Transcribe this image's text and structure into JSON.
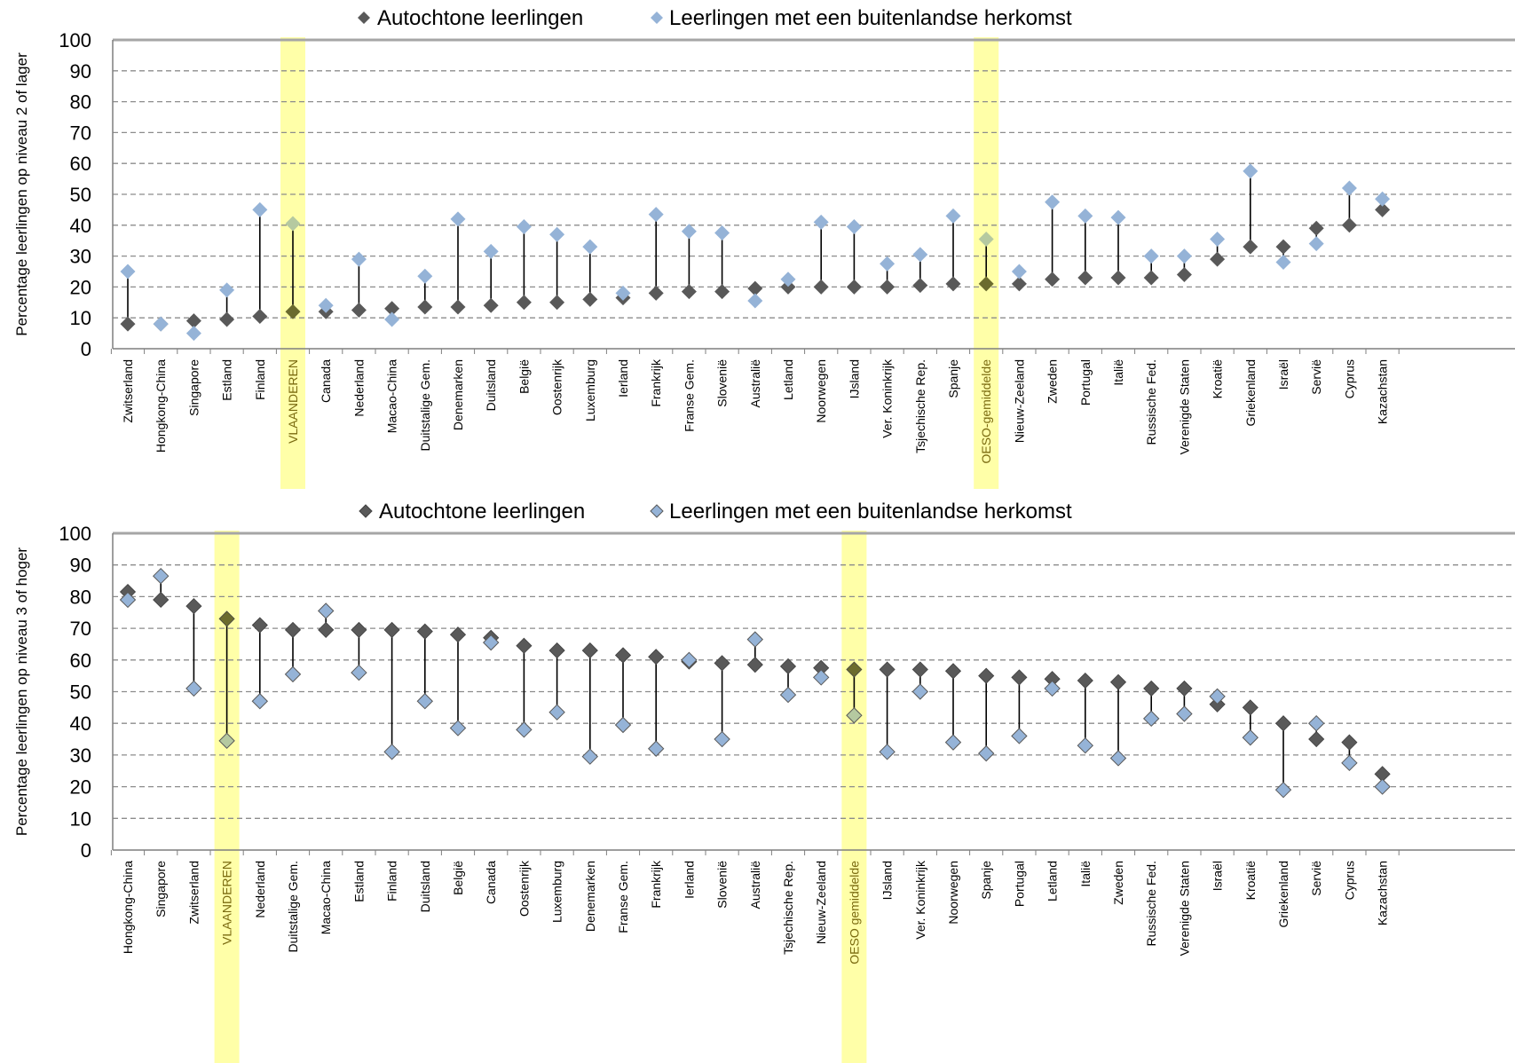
{
  "colors": {
    "autochtoon": "#595959",
    "buitenlands": "#95b3d7",
    "highlight": "#ffff99",
    "gridline": "#8c8c8c"
  },
  "chart_data": [
    {
      "type": "scatter",
      "ylabel": "Percentage leerlingen op niveau 2 of lager",
      "ylim": [
        0,
        100
      ],
      "yticks": [
        0,
        10,
        20,
        30,
        40,
        50,
        60,
        70,
        80,
        90,
        100
      ],
      "grid": true,
      "legend_position": "top",
      "highlight_categories": [
        "VLAANDEREN",
        "OESO-gemiddelde"
      ],
      "categories": [
        "Zwitserland",
        "Hongkong-China",
        "Singapore",
        "Estland",
        "Finland",
        "VLAANDEREN",
        "Canada",
        "Nederland",
        "Macao-China",
        "Duitstalige Gem.",
        "Denemarken",
        "Duitsland",
        "België",
        "Oostenrijk",
        "Luxemburg",
        "Ierland",
        "Frankrijk",
        "Franse Gem.",
        "Slovenië",
        "Australië",
        "Letland",
        "Noorwegen",
        "IJsland",
        "Ver. Koninkrijk",
        "Tsjechische Rep.",
        "Spanje",
        "OESO-gemiddelde",
        "Nieuw-Zeeland",
        "Zweden",
        "Portugal",
        "Italië",
        "Russische Fed.",
        "Verenigde Staten",
        "Kroatië",
        "Griekenland",
        "Israël",
        "Servië",
        "Cyprus",
        "Kazachstan"
      ],
      "series": [
        {
          "name": "Autochtone leerlingen",
          "values": [
            8,
            8,
            9,
            9.5,
            10.5,
            12,
            12,
            12.5,
            13,
            13.5,
            13.5,
            14,
            15,
            15,
            16,
            16.5,
            18,
            18.5,
            18.5,
            19.5,
            20,
            20,
            20,
            20,
            20.5,
            21,
            21,
            21,
            22.5,
            23,
            23,
            23,
            24,
            29,
            33,
            33,
            39,
            40,
            45
          ]
        },
        {
          "name": "Leerlingen met een buitenlandse herkomst",
          "values": [
            25,
            8,
            5,
            19,
            45,
            40.5,
            14,
            29,
            9.5,
            23.5,
            42,
            31.5,
            39.5,
            37,
            33,
            18,
            43.5,
            38,
            37.5,
            15.5,
            22.5,
            41,
            39.5,
            27.5,
            30.5,
            43,
            35.5,
            25,
            47.5,
            43,
            42.5,
            30,
            30,
            35.5,
            57.5,
            28,
            34,
            52,
            48.5
          ]
        }
      ]
    },
    {
      "type": "scatter",
      "ylabel": "Percentage leerlingen op niveau 3 of hoger",
      "ylim": [
        0,
        100
      ],
      "yticks": [
        0,
        10,
        20,
        30,
        40,
        50,
        60,
        70,
        80,
        90,
        100
      ],
      "grid": true,
      "legend_position": "top",
      "highlight_categories": [
        "VLAANDEREN",
        "OESO gemiddelde"
      ],
      "categories": [
        "Hongkong-China",
        "Singapore",
        "Zwitserland",
        "VLAANDEREN",
        "Nederland",
        "Duitstalige Gem.",
        "Macao-China",
        "Estland",
        "Finland",
        "Duitsland",
        "België",
        "Canada",
        "Oostenrijk",
        "Luxemburg",
        "Denemarken",
        "Franse Gem.",
        "Frankrijk",
        "Ierland",
        "Slovenië",
        "Australië",
        "Tsjechische Rep.",
        "Nieuw-Zeeland",
        "OESO gemiddelde",
        "IJsland",
        "Ver. Koninkrijk",
        "Noorwegen",
        "Spanje",
        "Portugal",
        "Letland",
        "Italië",
        "Zweden",
        "Russische Fed.",
        "Verenigde Staten",
        "Israël",
        "Kroatië",
        "Griekenland",
        "Servië",
        "Cyprus",
        "Kazachstan"
      ],
      "series": [
        {
          "name": "Autochtone leerlingen",
          "values": [
            81.5,
            79,
            77,
            73,
            71,
            69.5,
            69.5,
            69.5,
            69.5,
            69,
            68,
            67,
            64.5,
            63,
            63,
            61.5,
            61,
            59.5,
            59,
            58.5,
            58,
            57.5,
            57,
            57,
            57,
            56.5,
            55,
            54.5,
            54,
            53.5,
            53,
            51,
            51,
            46,
            45,
            40,
            35,
            34,
            24
          ]
        },
        {
          "name": "Leerlingen met een buitenlandse herkomst",
          "values": [
            79,
            86.5,
            51,
            34.5,
            47,
            55.5,
            75.5,
            56,
            31,
            47,
            38.5,
            65.5,
            38,
            43.5,
            29.5,
            39.5,
            32,
            60,
            35,
            66.5,
            49,
            54.5,
            42.5,
            31,
            50,
            34,
            30.5,
            36,
            51,
            33,
            29,
            41.5,
            43,
            48.5,
            35.5,
            19,
            40,
            27.5,
            20
          ]
        }
      ]
    }
  ]
}
